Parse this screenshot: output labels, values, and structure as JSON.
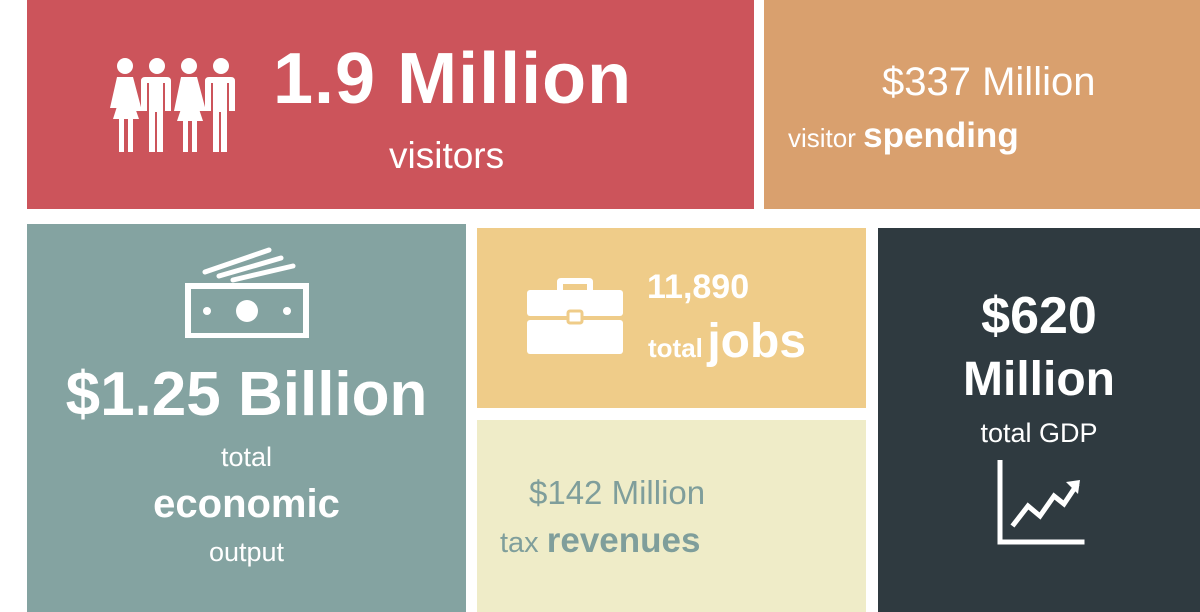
{
  "visitors": {
    "value": "1.9 Million",
    "label": "visitors",
    "icon": "people-icon",
    "color": "#cc545b"
  },
  "spending": {
    "value": "$337 Million",
    "label_prefix": "visitor",
    "label_emphasis": "spending",
    "color": "#d9a06e"
  },
  "output": {
    "value": "$1.25 Billion",
    "line1": "total",
    "line2": "economic",
    "line3": "output",
    "icon": "money-icon",
    "color": "#84a3a1"
  },
  "jobs": {
    "value": "11,890",
    "label_prefix": "total",
    "label_emphasis": "jobs",
    "icon": "briefcase-icon",
    "color": "#efcc89"
  },
  "tax": {
    "value": "$142 Million",
    "label_prefix": "tax",
    "label_emphasis": "revenues",
    "color": "#efecc8",
    "text_color": "#7f9e9b"
  },
  "gdp": {
    "value_line1": "$620",
    "value_line2": "Million",
    "label": "total GDP",
    "icon": "growth-chart-icon",
    "color": "#2f3a40"
  }
}
